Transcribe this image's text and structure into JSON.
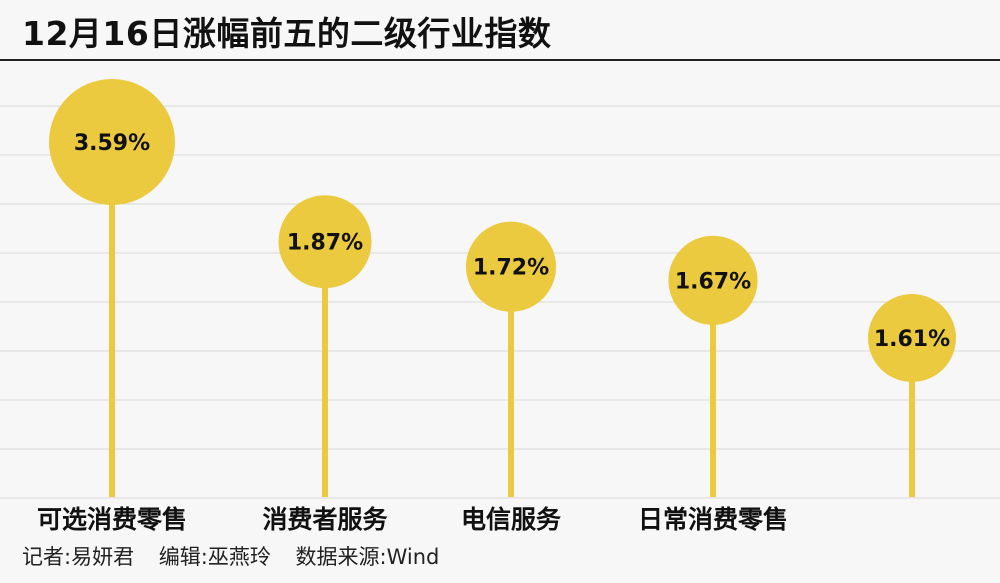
{
  "chart_data": {
    "type": "lollipop",
    "title": "12月16日涨幅前五的二级行业指数",
    "categories": [
      "可选消费零售",
      "消费者服务",
      "电信服务",
      "日常消费零售",
      ""
    ],
    "values": [
      3.59,
      1.87,
      1.72,
      1.67,
      1.61
    ],
    "value_labels": [
      "3.59%",
      "1.87%",
      "1.72%",
      "1.67%",
      "1.61%"
    ],
    "grid": true,
    "legend": "none"
  },
  "colors": {
    "accent": "#ebca3f",
    "grid": "#d9d9d9",
    "background": "#f7f7f7"
  },
  "credits": {
    "reporter": "记者:易妍君",
    "editor": "编辑:巫燕玲",
    "source": "数据来源:Wind"
  }
}
